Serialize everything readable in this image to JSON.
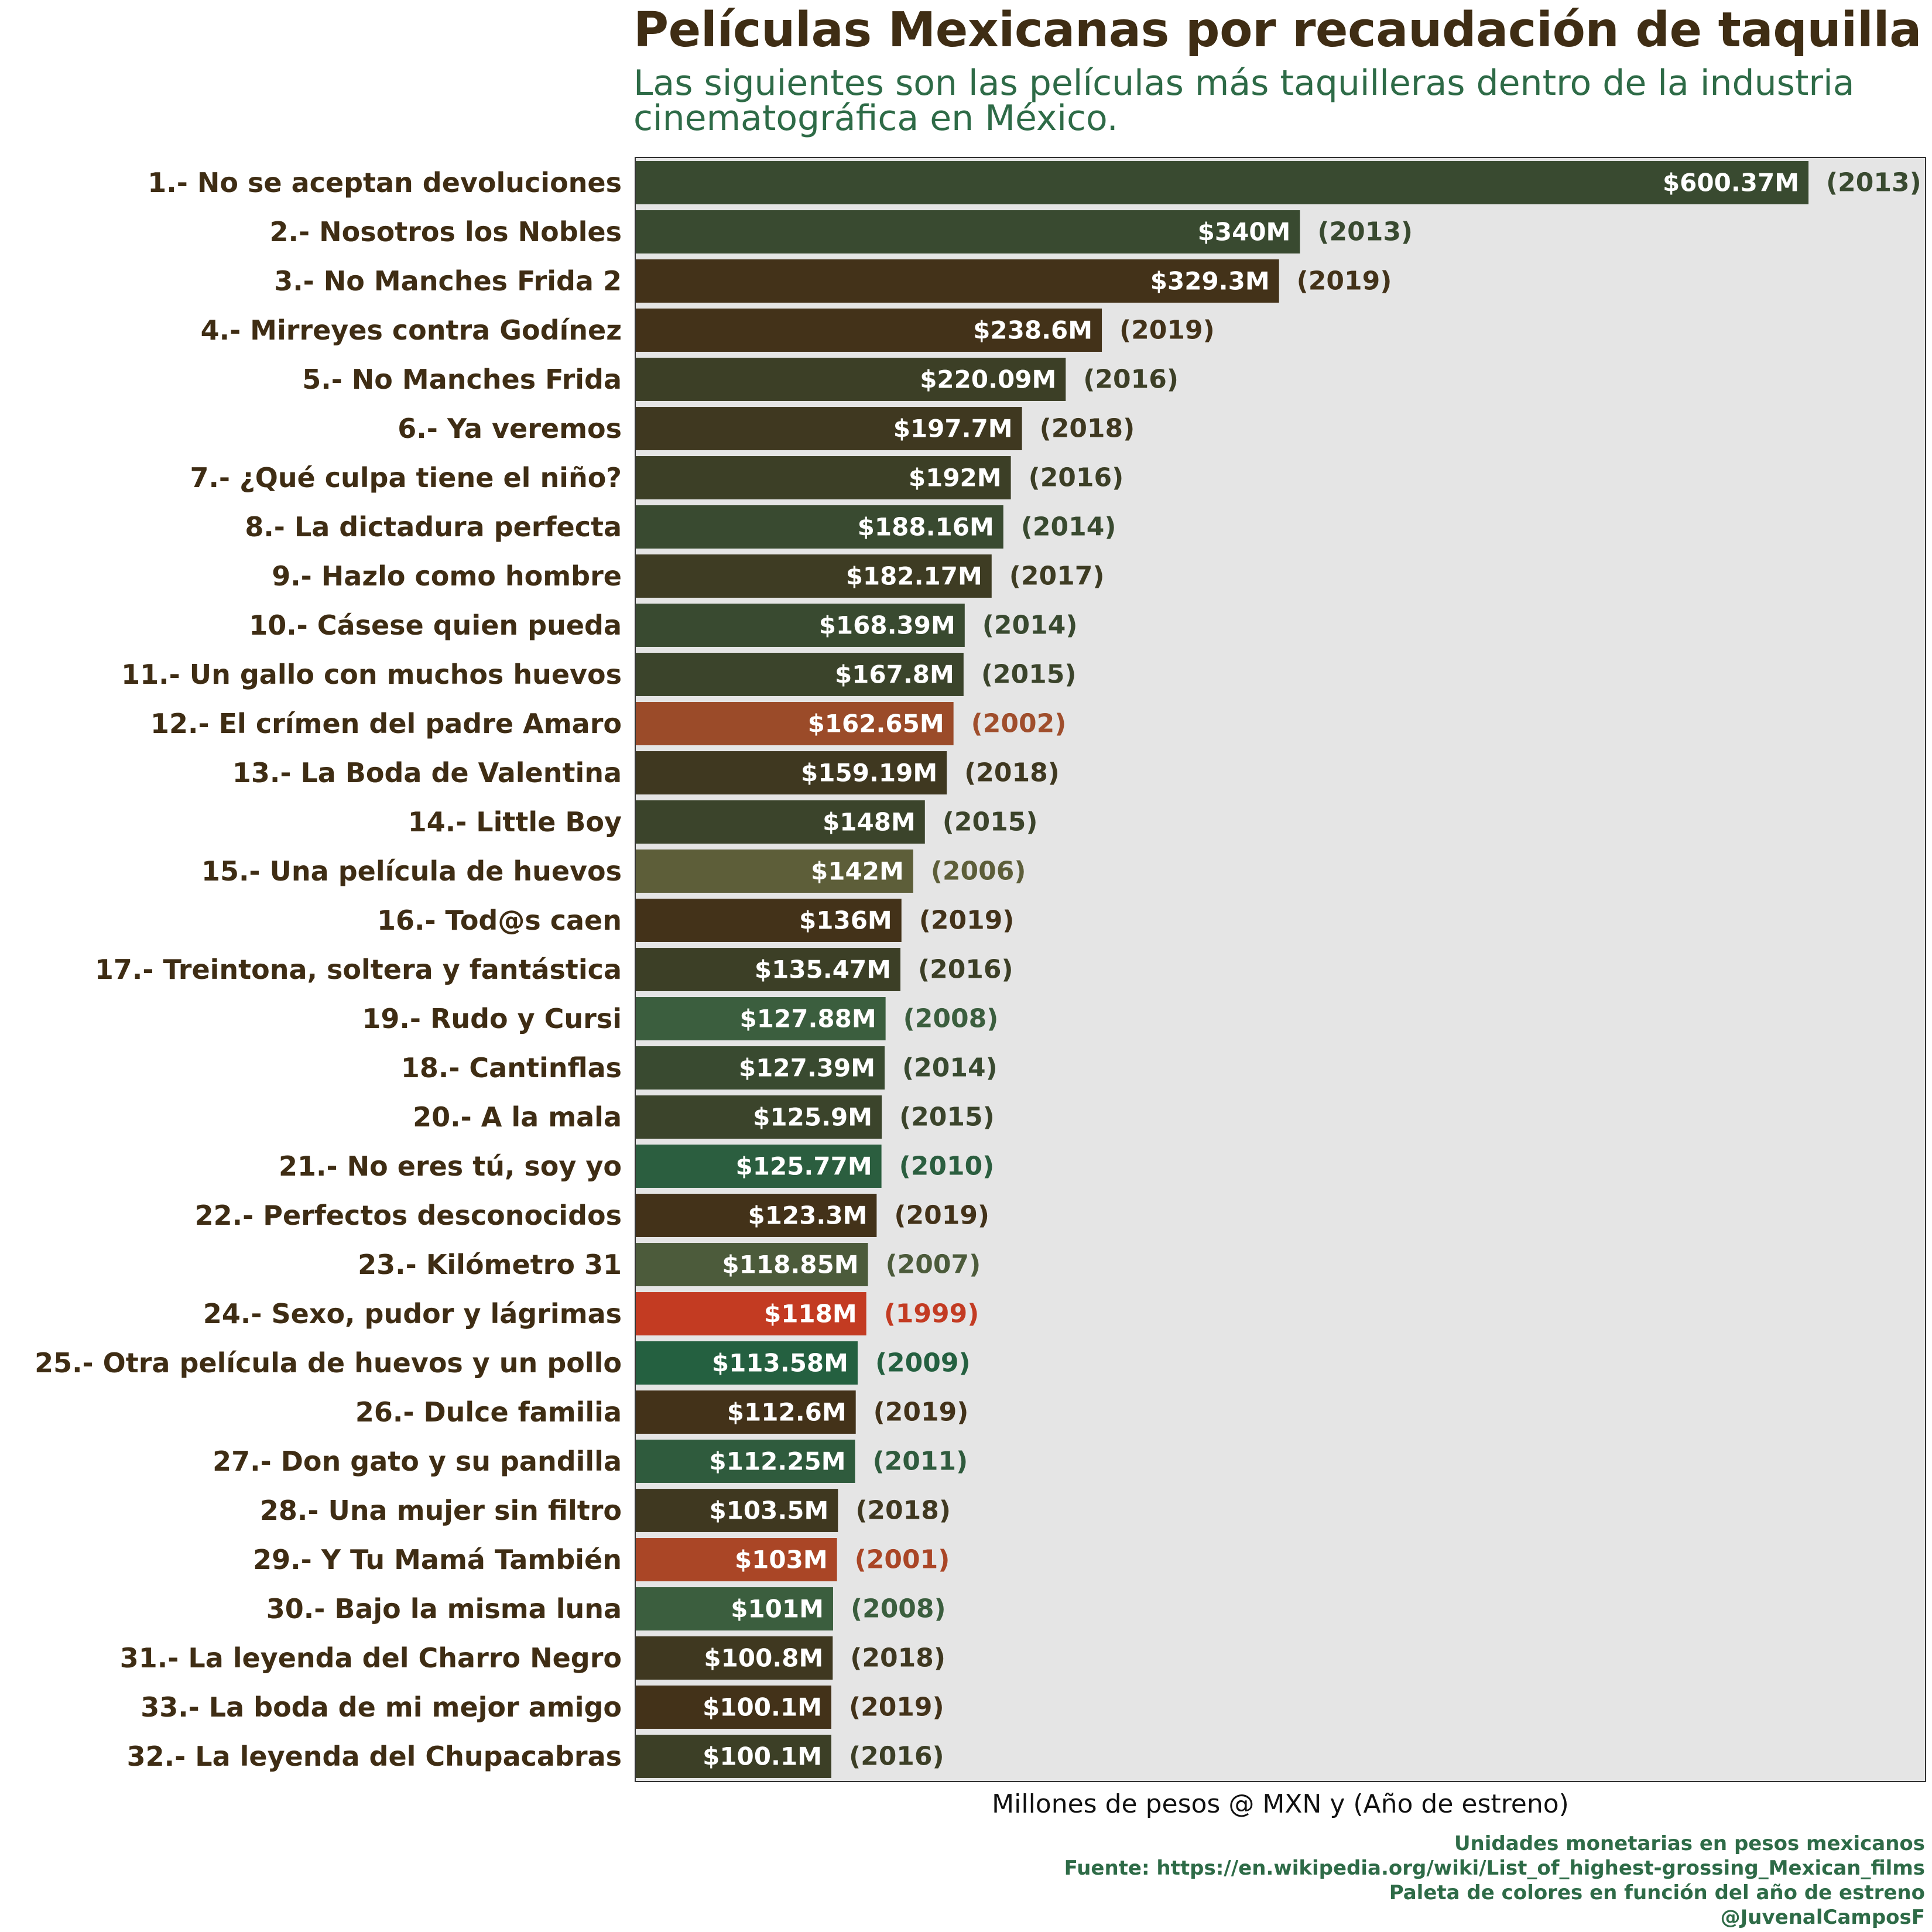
{
  "chart_data": {
    "type": "bar",
    "orientation": "horizontal",
    "title": "Películas Mexicanas por recaudación de taquilla",
    "subtitle": "Las siguientes son las películas más taquilleras dentro de la industria cinematográfica en México.",
    "xlabel": "Millones de pesos @ MXN y (Año de estreno)",
    "ylabel": "",
    "xlim": [
      0,
      660
    ],
    "grid": false,
    "legend": "none",
    "caption": [
      "Unidades monetarias en pesos mexicanos",
      "Fuente: https://en.wikipedia.org/wiki/List_of_highest-grossing_Mexican_films",
      "Paleta de colores en función del año de estreno",
      "@JuvenalCamposF"
    ],
    "categories": [
      "1.- No se aceptan devoluciones",
      "2.- Nosotros los Nobles",
      "3.- No Manches Frida 2",
      "4.- Mirreyes contra Godínez",
      "5.- No Manches Frida",
      "6.- Ya veremos",
      "7.- ¿Qué culpa tiene el niño?",
      "8.- La dictadura perfecta",
      "9.- Hazlo como hombre",
      "10.- Cásese quien pueda",
      "11.- Un gallo con muchos huevos",
      "12.- El crímen del padre Amaro",
      "13.- La Boda de Valentina",
      "14.- Little Boy",
      "15.- Una película de huevos",
      "16.- Tod@s caen",
      "17.- Treintona, soltera y fantástica",
      "19.- Rudo y Cursi",
      "18.- Cantinflas",
      "20.- A la mala",
      "21.- No eres tú, soy yo",
      "22.- Perfectos desconocidos",
      "23.- Kilómetro 31",
      "24.- Sexo, pudor y lágrimas",
      "25.- Otra película de huevos y un pollo",
      "26.- Dulce familia",
      "27.- Don gato y su pandilla",
      "28.- Una mujer sin filtro",
      "29.- Y Tu Mamá También",
      "30.- Bajo la misma luna",
      "31.- La leyenda del Charro Negro",
      "33.- La boda de mi mejor amigo",
      "32.- La leyenda del Chupacabras"
    ],
    "values": [
      600.37,
      340,
      329.3,
      238.6,
      220.09,
      197.7,
      192,
      188.16,
      182.17,
      168.39,
      167.8,
      162.65,
      159.19,
      148,
      142,
      136,
      135.47,
      127.88,
      127.39,
      125.9,
      125.77,
      123.3,
      118.85,
      118,
      113.58,
      112.6,
      112.25,
      103.5,
      103,
      101,
      100.8,
      100.1,
      100.1
    ],
    "value_labels": [
      "$600.37M",
      "$340M",
      "$329.3M",
      "$238.6M",
      "$220.09M",
      "$197.7M",
      "$192M",
      "$188.16M",
      "$182.17M",
      "$168.39M",
      "$167.8M",
      "$162.65M",
      "$159.19M",
      "$148M",
      "$142M",
      "$136M",
      "$135.47M",
      "$127.88M",
      "$127.39M",
      "$125.9M",
      "$125.77M",
      "$123.3M",
      "$118.85M",
      "$118M",
      "$113.58M",
      "$112.6M",
      "$112.25M",
      "$103.5M",
      "$103M",
      "$101M",
      "$100.8M",
      "$100.1M",
      "$100.1M"
    ],
    "years": [
      "(2013)",
      "(2013)",
      "(2019)",
      "(2019)",
      "(2016)",
      "(2018)",
      "(2016)",
      "(2014)",
      "(2017)",
      "(2014)",
      "(2015)",
      "(2002)",
      "(2018)",
      "(2015)",
      "(2006)",
      "(2019)",
      "(2016)",
      "(2008)",
      "(2014)",
      "(2015)",
      "(2010)",
      "(2019)",
      "(2007)",
      "(1999)",
      "(2009)",
      "(2019)",
      "(2011)",
      "(2018)",
      "(2001)",
      "(2008)",
      "(2018)",
      "(2019)",
      "(2016)"
    ],
    "colors": [
      "#394a30",
      "#394a30",
      "#433219",
      "#433219",
      "#3c3f26",
      "#3f3820",
      "#3c3f26",
      "#394a30",
      "#3e3c23",
      "#394a30",
      "#3b442b",
      "#9b4b29",
      "#3f3820",
      "#3b442b",
      "#5d5e39",
      "#433219",
      "#3c3f26",
      "#3b5e3e",
      "#394a30",
      "#3b442b",
      "#2b5e3f",
      "#433219",
      "#4c5b3b",
      "#c33b22",
      "#246040",
      "#433219",
      "#2f5b3d",
      "#3f3820",
      "#aa4626",
      "#3b5e3e",
      "#3f3820",
      "#433219",
      "#3c3f26"
    ],
    "year_label_colors": [
      "#394a30",
      "#394a30",
      "#433219",
      "#433219",
      "#3c3f26",
      "#3f3820",
      "#3c3f26",
      "#394a30",
      "#3e3c23",
      "#394a30",
      "#3b442b",
      "#a04e2c",
      "#3f3820",
      "#3b442b",
      "#5d5e39",
      "#433219",
      "#3c3f26",
      "#3b5e3e",
      "#394a30",
      "#3b442b",
      "#2b5e3f",
      "#433219",
      "#4c5b3b",
      "#c33b22",
      "#246040",
      "#433219",
      "#2f5b3d",
      "#3f3820",
      "#aa4626",
      "#3b5e3e",
      "#3f3820",
      "#433219",
      "#3c3f26"
    ]
  }
}
